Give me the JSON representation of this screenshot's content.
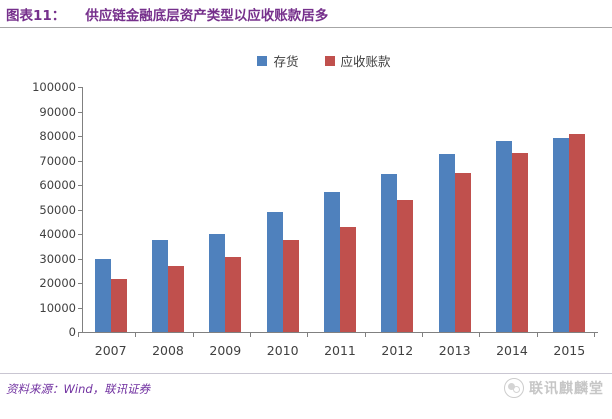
{
  "header": {
    "figure_label": "图表11：",
    "title": "供应链金融底层资产类型以应收账款居多"
  },
  "chart_data": {
    "type": "bar",
    "title": "供应链金融底层资产类型以应收账款居多",
    "categories": [
      "2007",
      "2008",
      "2009",
      "2010",
      "2011",
      "2012",
      "2013",
      "2014",
      "2015"
    ],
    "series": [
      {
        "name": "存货",
        "color": "#4F81BD",
        "values": [
          30000,
          37500,
          40000,
          49000,
          57000,
          64500,
          72500,
          78000,
          79000
        ]
      },
      {
        "name": "应收账款",
        "color": "#C0504D",
        "values": [
          21500,
          27000,
          30500,
          37500,
          43000,
          54000,
          65000,
          73000,
          81000
        ]
      }
    ],
    "xlabel": "",
    "ylabel": "",
    "ylim": [
      0,
      100000
    ],
    "ytick_step": 10000,
    "grid": false,
    "legend_position": "top-center"
  },
  "footer": {
    "source": "资料来源：Wind，联讯证券",
    "brand": "联讯麒麟堂"
  },
  "icons": {
    "brand_logo": "qilin-logo-icon"
  },
  "colors": {
    "title_text": "#76308C",
    "source_text": "#7030A0",
    "axis": "#808080",
    "axis_text": "#404040",
    "header_rule": "#A6A6A6",
    "footer_rule": "#C9C6D2",
    "brand_gray": "#C6C6C6",
    "series_blue": "#4F81BD",
    "series_red": "#C0504D"
  }
}
